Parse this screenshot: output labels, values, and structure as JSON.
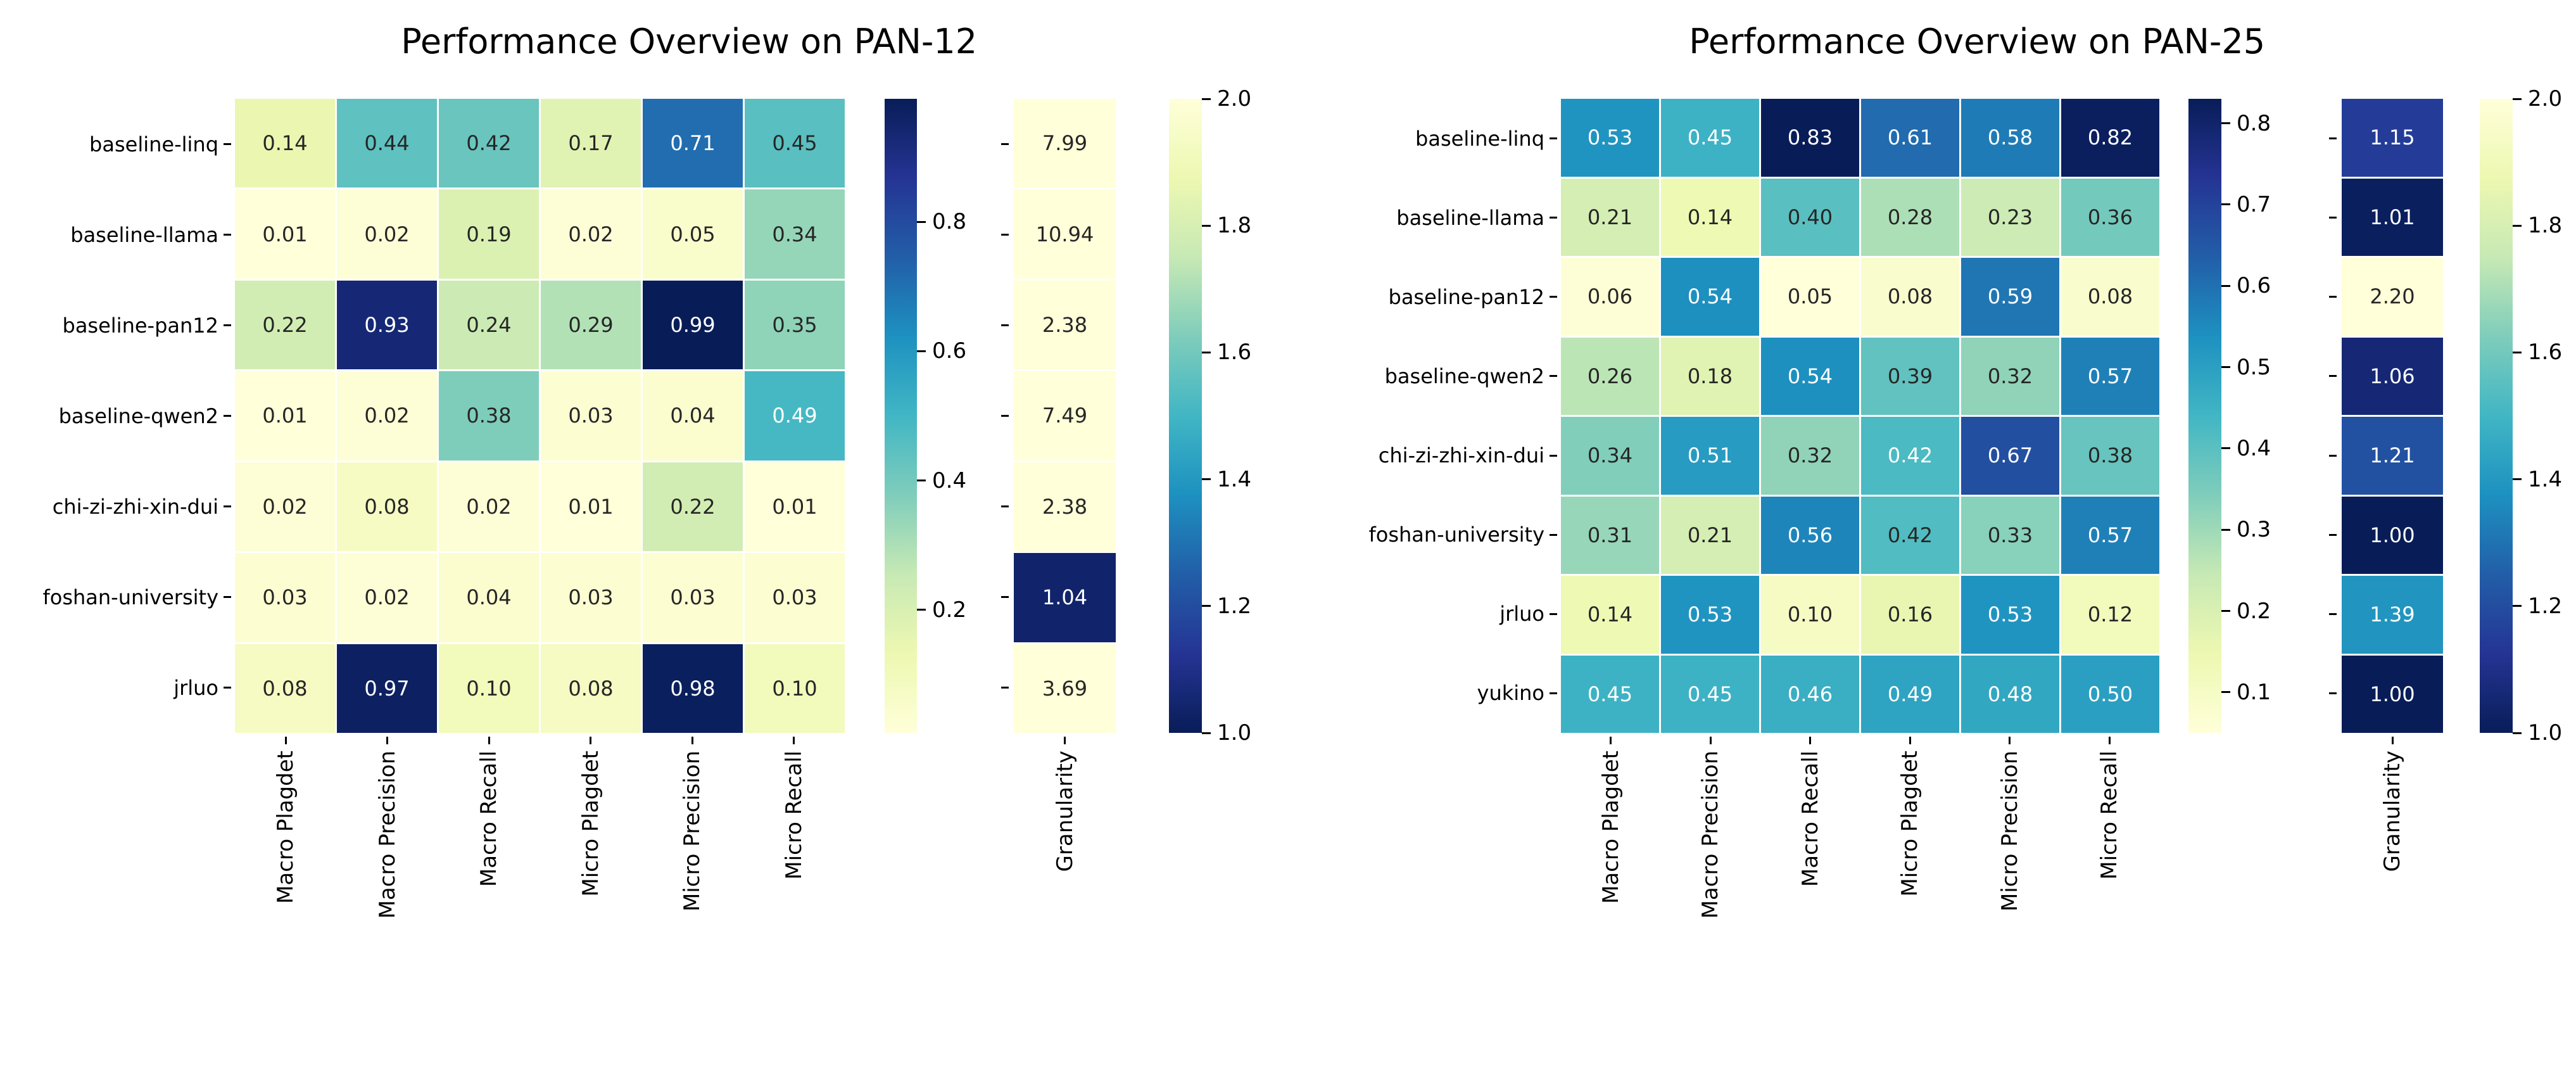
{
  "colormap": {
    "name": "YlGnBu",
    "stops": [
      "#ffffd9",
      "#edf8b1",
      "#c7e9b4",
      "#7fcdbb",
      "#41b6c4",
      "#1d91c0",
      "#225ea8",
      "#253494",
      "#081d58"
    ],
    "annotation_dark_text": "#262626",
    "annotation_light_text": "#ffffff",
    "axis_text": "#000000"
  },
  "chart_data": [
    {
      "type": "heatmap",
      "title": "Performance Overview on PAN-12",
      "rows": [
        "baseline-linq",
        "baseline-llama",
        "baseline-pan12",
        "baseline-qwen2",
        "chi-zi-zhi-xin-dui",
        "foshan-university",
        "jrluo"
      ],
      "columns": [
        "Macro Plagdet",
        "Macro Precision",
        "Macro Recall",
        "Micro Plagdet",
        "Micro Precision",
        "Micro Recall"
      ],
      "values": [
        [
          0.14,
          0.44,
          0.42,
          0.17,
          0.71,
          0.45
        ],
        [
          0.01,
          0.02,
          0.19,
          0.02,
          0.05,
          0.34
        ],
        [
          0.22,
          0.93,
          0.24,
          0.29,
          0.99,
          0.35
        ],
        [
          0.01,
          0.02,
          0.38,
          0.03,
          0.04,
          0.49
        ],
        [
          0.02,
          0.08,
          0.02,
          0.01,
          0.22,
          0.01
        ],
        [
          0.03,
          0.02,
          0.04,
          0.03,
          0.03,
          0.03
        ],
        [
          0.08,
          0.97,
          0.1,
          0.08,
          0.98,
          0.1
        ]
      ],
      "value_labels": [
        [
          "0.14",
          "0.44",
          "0.42",
          "0.17",
          "0.71",
          "0.45"
        ],
        [
          "0.01",
          "0.02",
          "0.19",
          "0.02",
          "0.05",
          "0.34"
        ],
        [
          "0.22",
          "0.93",
          "0.24",
          "0.29",
          "0.99",
          "0.35"
        ],
        [
          "0.01",
          "0.02",
          "0.38",
          "0.03",
          "0.04",
          "0.49"
        ],
        [
          "0.02",
          "0.08",
          "0.02",
          "0.01",
          "0.22",
          "0.01"
        ],
        [
          "0.03",
          "0.02",
          "0.04",
          "0.03",
          "0.03",
          "0.03"
        ],
        [
          "0.08",
          "0.97",
          "0.10",
          "0.08",
          "0.98",
          "0.10"
        ]
      ],
      "color_scale": {
        "vmin": 0.01,
        "vmax": 0.99,
        "colorbar_ticks": [
          0.8,
          0.6,
          0.4,
          0.2
        ]
      },
      "granularity": {
        "label": "Granularity",
        "values": [
          7.99,
          10.94,
          2.38,
          7.49,
          2.38,
          1.04,
          3.69
        ],
        "value_labels": [
          "7.99",
          "10.94",
          "2.38",
          "7.49",
          "2.38",
          "1.04",
          "3.69"
        ],
        "scale": {
          "vmin": 1.0,
          "vmax": 2.0,
          "ticks": [
            2.0,
            1.8,
            1.6,
            1.4,
            1.2,
            1.0
          ],
          "reversed": true
        }
      }
    },
    {
      "type": "heatmap",
      "title": "Performance Overview on PAN-25",
      "rows": [
        "baseline-linq",
        "baseline-llama",
        "baseline-pan12",
        "baseline-qwen2",
        "chi-zi-zhi-xin-dui",
        "foshan-university",
        "jrluo",
        "yukino"
      ],
      "columns": [
        "Macro Plagdet",
        "Macro Precision",
        "Macro Recall",
        "Micro Plagdet",
        "Micro Precision",
        "Micro Recall"
      ],
      "values": [
        [
          0.53,
          0.45,
          0.83,
          0.61,
          0.58,
          0.82
        ],
        [
          0.21,
          0.14,
          0.4,
          0.28,
          0.23,
          0.36
        ],
        [
          0.06,
          0.54,
          0.05,
          0.08,
          0.59,
          0.08
        ],
        [
          0.26,
          0.18,
          0.54,
          0.39,
          0.32,
          0.57
        ],
        [
          0.34,
          0.51,
          0.32,
          0.425,
          0.67,
          0.38
        ],
        [
          0.31,
          0.21,
          0.56,
          0.415,
          0.33,
          0.57
        ],
        [
          0.14,
          0.53,
          0.1,
          0.16,
          0.53,
          0.12
        ],
        [
          0.45,
          0.45,
          0.46,
          0.49,
          0.48,
          0.5
        ]
      ],
      "value_labels": [
        [
          "0.53",
          "0.45",
          "0.83",
          "0.61",
          "0.58",
          "0.82"
        ],
        [
          "0.21",
          "0.14",
          "0.40",
          "0.28",
          "0.23",
          "0.36"
        ],
        [
          "0.06",
          "0.54",
          "0.05",
          "0.08",
          "0.59",
          "0.08"
        ],
        [
          "0.26",
          "0.18",
          "0.54",
          "0.39",
          "0.32",
          "0.57"
        ],
        [
          "0.34",
          "0.51",
          "0.32",
          "0.42",
          "0.67",
          "0.38"
        ],
        [
          "0.31",
          "0.21",
          "0.56",
          "0.42",
          "0.33",
          "0.57"
        ],
        [
          "0.14",
          "0.53",
          "0.10",
          "0.16",
          "0.53",
          "0.12"
        ],
        [
          "0.45",
          "0.45",
          "0.46",
          "0.49",
          "0.48",
          "0.50"
        ]
      ],
      "color_scale": {
        "vmin": 0.05,
        "vmax": 0.83,
        "colorbar_ticks": [
          0.8,
          0.7,
          0.6,
          0.5,
          0.4,
          0.3,
          0.2,
          0.1
        ]
      },
      "granularity": {
        "label": "Granularity",
        "values": [
          1.15,
          1.01,
          2.2,
          1.06,
          1.21,
          1.0,
          1.39,
          1.0
        ],
        "value_labels": [
          "1.15",
          "1.01",
          "2.20",
          "1.06",
          "1.21",
          "1.00",
          "1.39",
          "1.00"
        ],
        "scale": {
          "vmin": 1.0,
          "vmax": 2.0,
          "ticks": [
            2.0,
            1.8,
            1.6,
            1.4,
            1.2,
            1.0
          ],
          "reversed": true
        }
      }
    }
  ]
}
